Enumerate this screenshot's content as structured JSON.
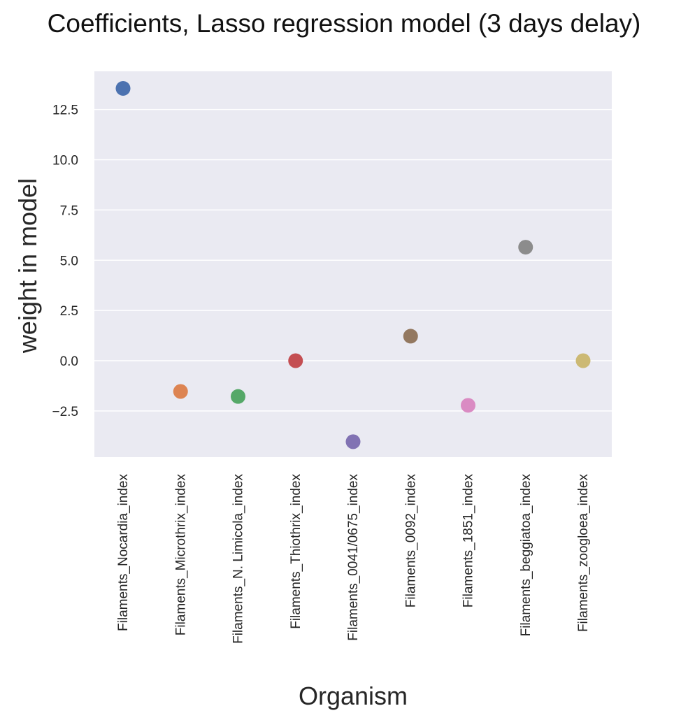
{
  "chart_data": {
    "type": "scatter",
    "title": "Coefficients, Lasso regression model (3 days delay)",
    "xlabel": "Organism",
    "ylabel": "weight in model",
    "categories": [
      "Filaments_Nocardia_index",
      "Filaments_Microthrix_index",
      "Filaments_N. Limicola_index",
      "Filaments_Thiothrix_index",
      "Filaments_0041/0675_index",
      "Filaments_0092_index",
      "Filaments_1851_index",
      "Filaments_beggiatoa_index",
      "Filaments_zoogloea_index"
    ],
    "values": [
      13.55,
      -1.53,
      -1.78,
      0.0,
      -4.03,
      1.22,
      -2.22,
      5.65,
      0.0
    ],
    "colors": [
      "#4c72b0",
      "#dd8452",
      "#55a868",
      "#c44e52",
      "#8172b3",
      "#937860",
      "#da8bc3",
      "#8c8c8c",
      "#ccb974"
    ],
    "yticks": [
      -2.5,
      0.0,
      2.5,
      5.0,
      7.5,
      10.0,
      12.5
    ],
    "ytick_labels": [
      "−2.5",
      "0.0",
      "2.5",
      "5.0",
      "7.5",
      "10.0",
      "12.5"
    ],
    "ylim": [
      -4.8,
      14.4
    ],
    "grid": true,
    "background": "#eaeaf2",
    "grid_color": "#ffffff"
  }
}
